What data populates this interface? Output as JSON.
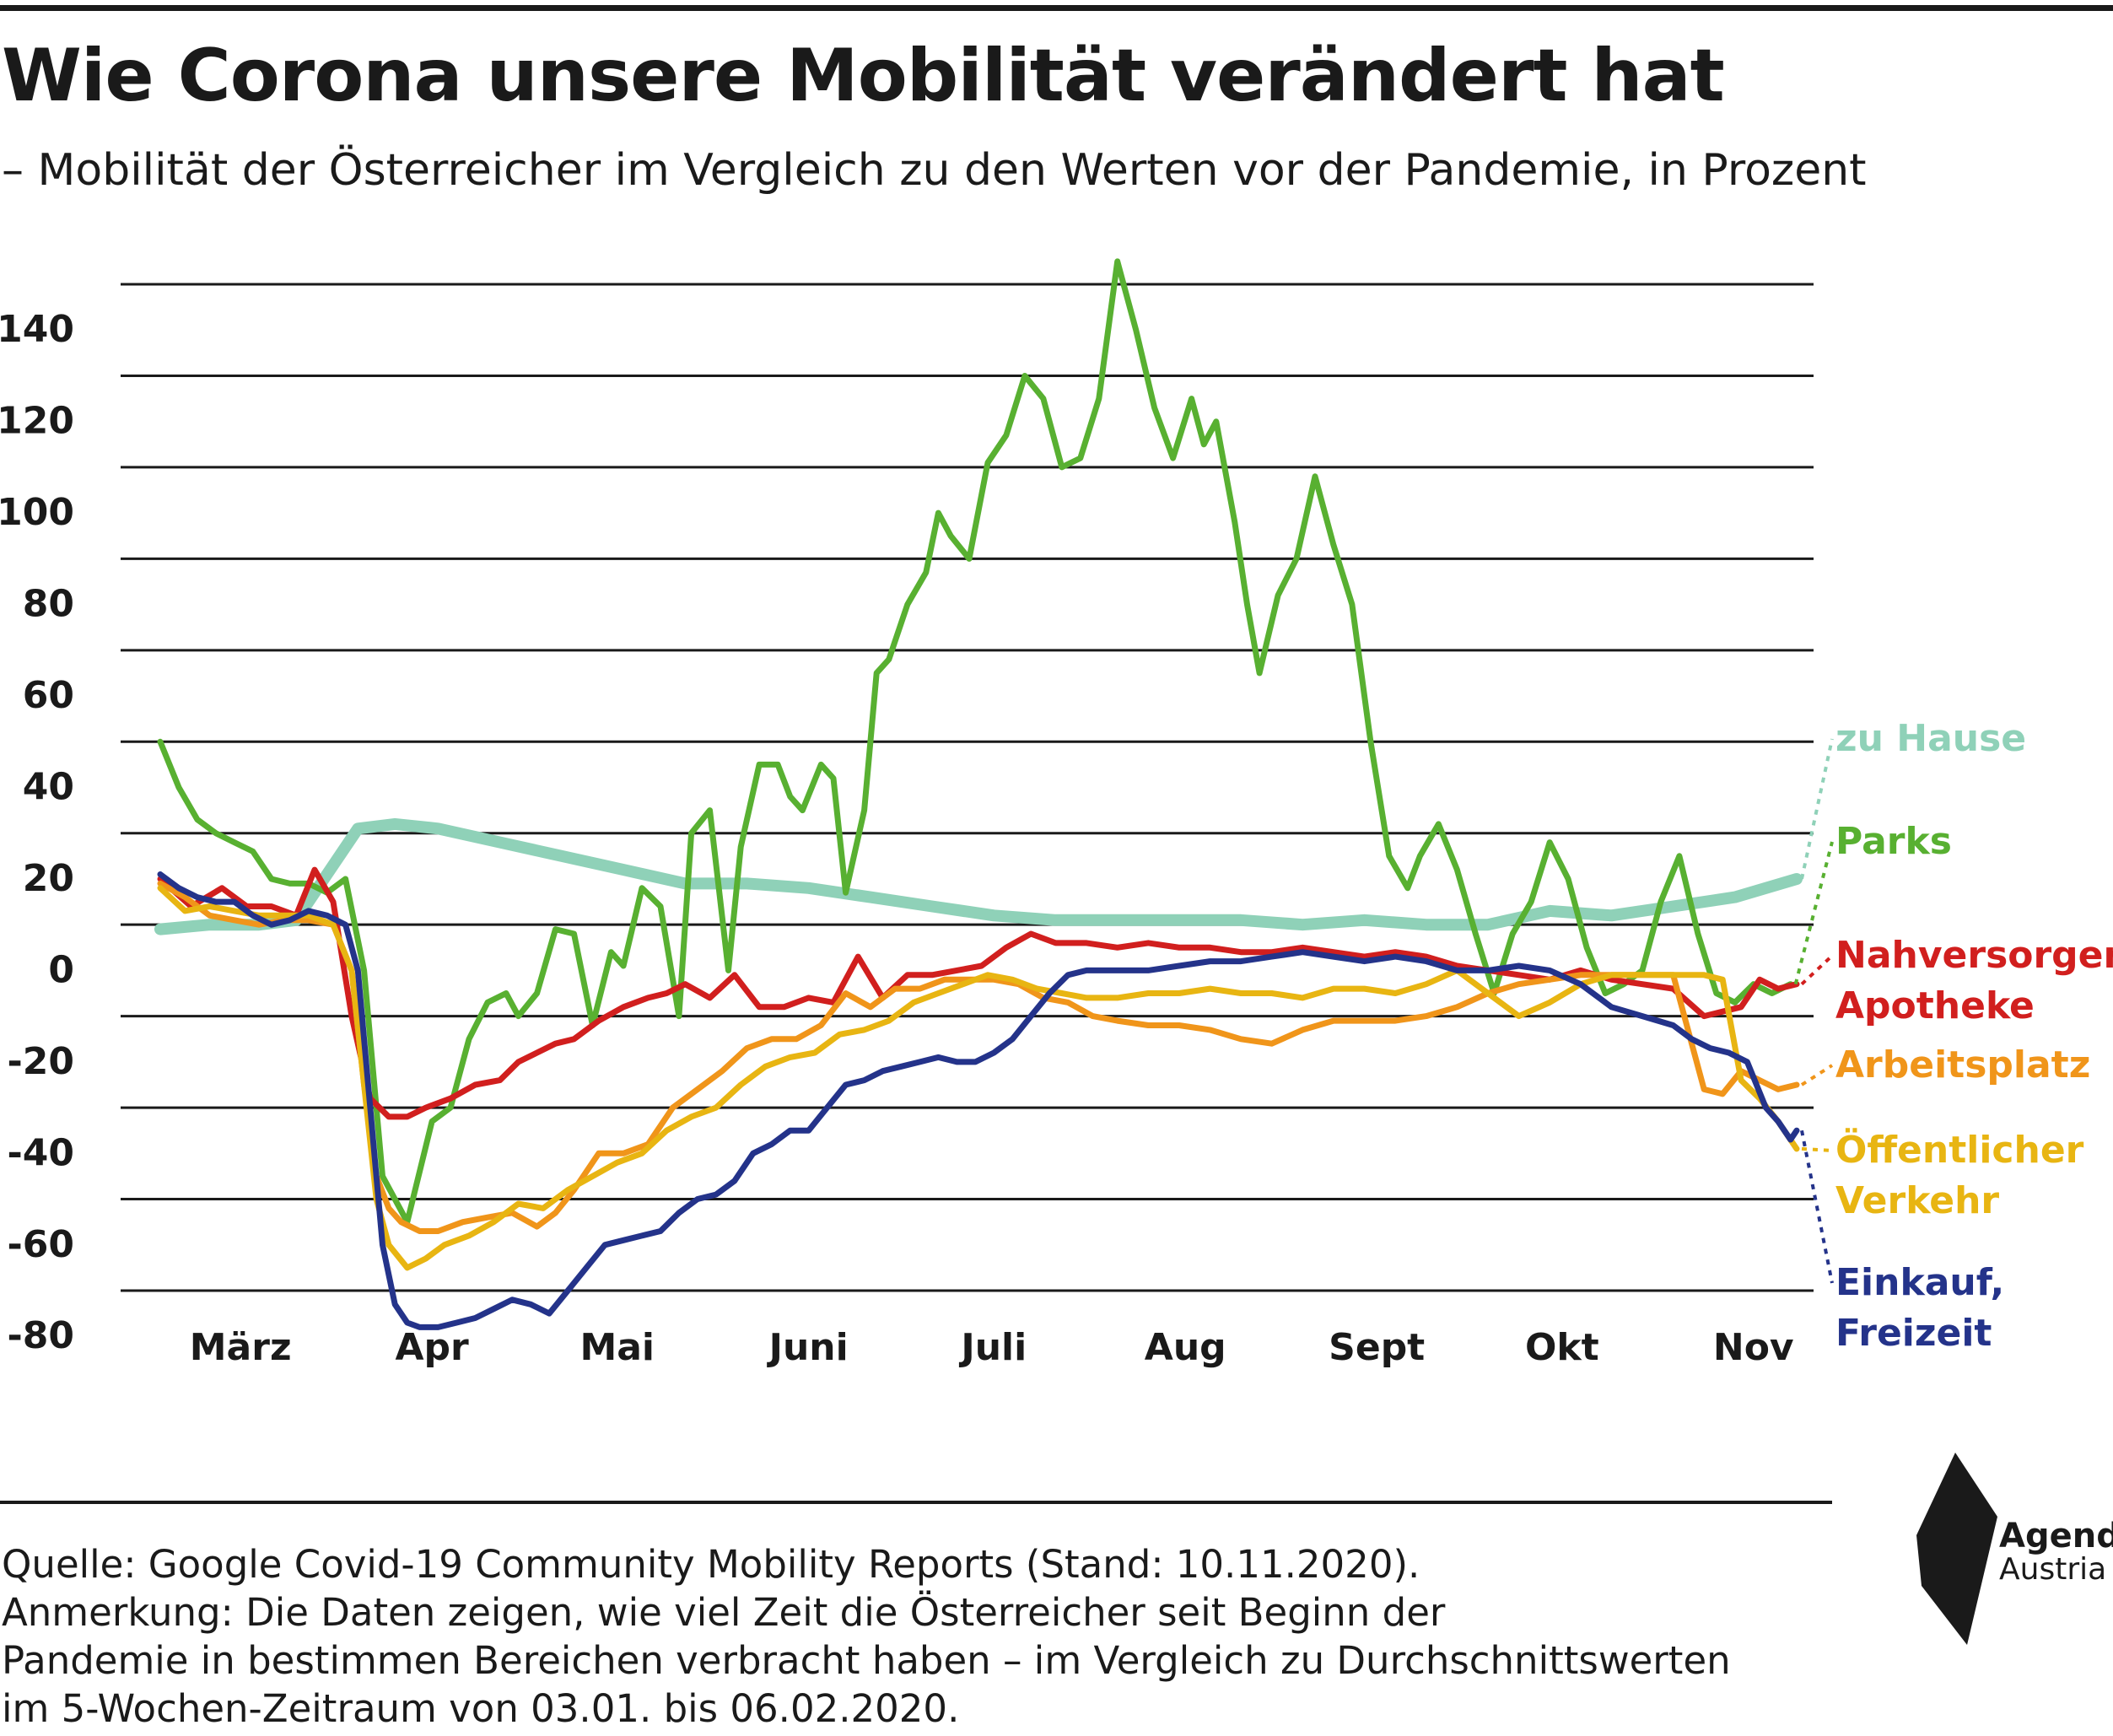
{
  "header": {
    "title": "Wie Corona unsere Mobilität verändert hat",
    "subtitle": "– Mobilität der Österreicher im Vergleich zu den Werten vor der Pandemie, in Prozent"
  },
  "footer": {
    "lines": [
      "Quelle: Google Covid-19 Community Mobility Reports (Stand: 10.11.2020).",
      "Anmerkung: Die Daten zeigen, wie viel Zeit die Österreicher seit Beginn der",
      "Pandemie in bestimmen Bereichen verbracht haben – im Vergleich zu Durchschnittswerten",
      "im 5-Wochen-Zeitraum von 03.01. bis 06.02.2020."
    ]
  },
  "logo": {
    "line1": "Agenda",
    "line2": "Austria",
    "icon": "agenda-austria-logo-icon"
  },
  "chart_data": {
    "type": "line",
    "title": "Wie Corona unsere Mobilität verändert hat",
    "ylim": [
      -80,
      150
    ],
    "yticks": [
      140,
      120,
      100,
      80,
      60,
      40,
      20,
      0,
      -20,
      -40,
      -60,
      -80
    ],
    "gridlines": [
      150,
      130,
      110,
      90,
      70,
      50,
      30,
      10,
      -10,
      -30,
      -50,
      -70
    ],
    "xlim": [
      0,
      265
    ],
    "x_tick_labels": [
      "März",
      "Apr",
      "Mai",
      "Juni",
      "Juli",
      "Aug",
      "Sept",
      "Okt",
      "Nov"
    ],
    "x_tick_positions": [
      13,
      44,
      74,
      105,
      135,
      166,
      197,
      227,
      258
    ],
    "grid": true,
    "legend": "right, inline labels",
    "series": [
      {
        "key": "home",
        "name": "zu Hause",
        "color": "#8fd1b8",
        "width": 14,
        "x": [
          0,
          8,
          16,
          22,
          27,
          32,
          38,
          45,
          55,
          65,
          75,
          85,
          95,
          105,
          115,
          125,
          135,
          145,
          155,
          165,
          175,
          185,
          195,
          205,
          215,
          225,
          235,
          245,
          255,
          265
        ],
        "y": [
          9,
          10,
          10,
          11,
          21,
          31,
          32,
          31,
          28,
          25,
          22,
          19,
          19,
          18,
          16,
          14,
          12,
          11,
          11,
          11,
          11,
          10,
          11,
          10,
          10,
          13,
          12,
          14,
          16,
          20
        ]
      },
      {
        "key": "parks",
        "name": "Parks",
        "label": [
          "Parks"
        ],
        "color": "#58b031",
        "width": 7,
        "x": [
          0,
          3,
          6,
          9,
          12,
          15,
          18,
          21,
          24,
          27,
          30,
          33,
          36,
          40,
          44,
          47,
          50,
          53,
          56,
          58,
          61,
          64,
          67,
          70,
          73,
          75,
          78,
          81,
          84,
          86,
          89,
          92,
          94,
          97,
          100,
          102,
          104,
          107,
          109,
          111,
          114,
          116,
          118,
          121,
          124,
          126,
          128,
          131,
          134,
          137,
          140,
          143,
          146,
          149,
          152,
          155,
          158,
          161,
          164,
          167,
          169,
          171,
          174,
          176,
          178,
          181,
          184,
          187,
          190,
          193,
          196,
          199,
          202,
          204,
          207,
          210,
          213,
          216,
          219,
          222,
          225,
          228,
          231,
          234,
          237,
          240,
          243,
          246,
          249,
          252,
          255,
          258,
          261,
          264
        ],
        "y": [
          50,
          40,
          33,
          30,
          28,
          26,
          20,
          19,
          19,
          17,
          20,
          0,
          -45,
          -55,
          -33,
          -30,
          -15,
          -7,
          -5,
          -10,
          -5,
          9,
          8,
          -12,
          4,
          1,
          18,
          14,
          -10,
          30,
          35,
          0,
          27,
          45,
          45,
          38,
          35,
          45,
          42,
          17,
          35,
          65,
          68,
          80,
          87,
          100,
          95,
          90,
          111,
          117,
          130,
          125,
          110,
          112,
          125,
          155,
          140,
          123,
          112,
          125,
          115,
          120,
          98,
          80,
          65,
          82,
          90,
          108,
          93,
          80,
          50,
          25,
          18,
          25,
          32,
          22,
          8,
          -5,
          8,
          15,
          28,
          20,
          5,
          -5,
          -3,
          0,
          15,
          25,
          8,
          -5,
          -7,
          -3,
          -5,
          -3
        ]
      },
      {
        "key": "grocery",
        "name": "Nahversorger, Apotheke",
        "label": [
          "Nahversorger,",
          "Apotheke"
        ],
        "color": "#d11f1e",
        "width": 7,
        "x": [
          0,
          5,
          10,
          14,
          18,
          22,
          25,
          28,
          31,
          34,
          37,
          40,
          43,
          47,
          51,
          55,
          58,
          61,
          64,
          67,
          71,
          75,
          79,
          82,
          85,
          89,
          93,
          97,
          101,
          105,
          109,
          113,
          117,
          121,
          125,
          129,
          133,
          137,
          141,
          145,
          150,
          155,
          160,
          165,
          170,
          175,
          180,
          185,
          190,
          195,
          200,
          205,
          210,
          215,
          220,
          225,
          230,
          235,
          240,
          245,
          250,
          253,
          256,
          259,
          262,
          265
        ],
        "y": [
          20,
          14,
          18,
          14,
          14,
          12,
          22,
          15,
          -10,
          -28,
          -32,
          -32,
          -30,
          -28,
          -25,
          -24,
          -20,
          -18,
          -16,
          -15,
          -11,
          -8,
          -6,
          -5,
          -3,
          -6,
          -1,
          -8,
          -8,
          -6,
          -7,
          3,
          -6,
          -1,
          -1,
          0,
          1,
          5,
          8,
          6,
          6,
          5,
          6,
          5,
          5,
          4,
          4,
          5,
          4,
          3,
          4,
          3,
          1,
          0,
          -1,
          -2,
          0,
          -2,
          -3,
          -4,
          -10,
          -9,
          -8,
          -2,
          -4,
          -3
        ]
      },
      {
        "key": "work",
        "name": "Arbeitsplatz",
        "label": [
          "Arbeitsplatz"
        ],
        "color": "#f0951a",
        "width": 7,
        "x": [
          0,
          4,
          8,
          12,
          16,
          20,
          24,
          28,
          31,
          33,
          35,
          37,
          39,
          42,
          45,
          49,
          53,
          57,
          61,
          64,
          67,
          71,
          75,
          79,
          83,
          87,
          91,
          95,
          99,
          103,
          107,
          111,
          115,
          119,
          123,
          127,
          131,
          135,
          139,
          143,
          147,
          151,
          155,
          160,
          165,
          170,
          175,
          180,
          185,
          190,
          195,
          200,
          205,
          210,
          215,
          220,
          225,
          230,
          235,
          240,
          245,
          250,
          253,
          256,
          259,
          262,
          265
        ],
        "y": [
          19,
          16,
          12,
          11,
          10,
          11,
          11,
          10,
          0,
          -25,
          -45,
          -52,
          -55,
          -57,
          -57,
          -55,
          -54,
          -53,
          -56,
          -53,
          -48,
          -40,
          -40,
          -38,
          -30,
          -26,
          -22,
          -17,
          -15,
          -15,
          -12,
          -5,
          -8,
          -4,
          -4,
          -2,
          -2,
          -2,
          -3,
          -6,
          -7,
          -10,
          -11,
          -12,
          -12,
          -13,
          -15,
          -16,
          -13,
          -11,
          -11,
          -11,
          -10,
          -8,
          -5,
          -3,
          -2,
          -1,
          -1,
          -1,
          -1,
          -26,
          -27,
          -22,
          -24,
          -26,
          -25
        ]
      },
      {
        "key": "transit",
        "name": "Öffentlicher Verkehr",
        "label": [
          "Öffentlicher",
          "Verkehr"
        ],
        "color": "#e8b512",
        "width": 7,
        "x": [
          0,
          4,
          8,
          12,
          16,
          20,
          24,
          28,
          31,
          33,
          35,
          37,
          40,
          43,
          46,
          50,
          54,
          58,
          62,
          66,
          70,
          74,
          78,
          82,
          86,
          90,
          94,
          98,
          102,
          106,
          110,
          114,
          118,
          122,
          126,
          130,
          134,
          138,
          142,
          146,
          150,
          155,
          160,
          165,
          170,
          175,
          180,
          185,
          190,
          195,
          200,
          205,
          210,
          215,
          220,
          225,
          230,
          235,
          240,
          245,
          250,
          253,
          256,
          259,
          262,
          265
        ],
        "y": [
          18,
          13,
          14,
          13,
          12,
          12,
          12,
          10,
          0,
          -25,
          -50,
          -60,
          -65,
          -63,
          -60,
          -58,
          -55,
          -51,
          -52,
          -48,
          -45,
          -42,
          -40,
          -35,
          -32,
          -30,
          -25,
          -21,
          -19,
          -18,
          -14,
          -13,
          -11,
          -7,
          -5,
          -3,
          -1,
          -2,
          -4,
          -5,
          -6,
          -6,
          -5,
          -5,
          -4,
          -5,
          -5,
          -6,
          -4,
          -4,
          -5,
          -3,
          0,
          -5,
          -10,
          -7,
          -3,
          -1,
          -1,
          -1,
          -1,
          -2,
          -24,
          -28,
          -33,
          -39
        ]
      },
      {
        "key": "retail",
        "name": "Einkauf, Freizeit",
        "label": [
          "Einkauf,",
          "Freizeit"
        ],
        "color": "#24338a",
        "width": 7,
        "x": [
          0,
          3,
          6,
          9,
          12,
          15,
          18,
          21,
          24,
          27,
          30,
          32,
          34,
          36,
          38,
          40,
          42,
          45,
          48,
          51,
          54,
          57,
          60,
          63,
          66,
          69,
          72,
          75,
          78,
          81,
          84,
          87,
          90,
          93,
          96,
          99,
          102,
          105,
          108,
          111,
          114,
          117,
          120,
          123,
          126,
          129,
          132,
          135,
          138,
          141,
          144,
          147,
          150,
          155,
          160,
          165,
          170,
          175,
          180,
          185,
          190,
          195,
          200,
          205,
          210,
          215,
          220,
          225,
          230,
          235,
          240,
          245,
          248,
          251,
          254,
          257,
          260,
          262,
          264,
          265
        ],
        "y": [
          21,
          18,
          16,
          15,
          15,
          12,
          10,
          11,
          13,
          12,
          10,
          0,
          -30,
          -60,
          -73,
          -77,
          -78,
          -78,
          -77,
          -76,
          -74,
          -72,
          -73,
          -75,
          -70,
          -65,
          -60,
          -59,
          -58,
          -57,
          -53,
          -50,
          -49,
          -46,
          -40,
          -38,
          -35,
          -35,
          -30,
          -25,
          -24,
          -22,
          -21,
          -20,
          -19,
          -20,
          -20,
          -18,
          -15,
          -10,
          -5,
          -1,
          0,
          0,
          0,
          1,
          2,
          2,
          3,
          4,
          3,
          2,
          3,
          2,
          0,
          0,
          1,
          0,
          -3,
          -8,
          -10,
          -12,
          -15,
          -17,
          -18,
          -20,
          -30,
          -33,
          -37,
          -35
        ]
      }
    ]
  }
}
